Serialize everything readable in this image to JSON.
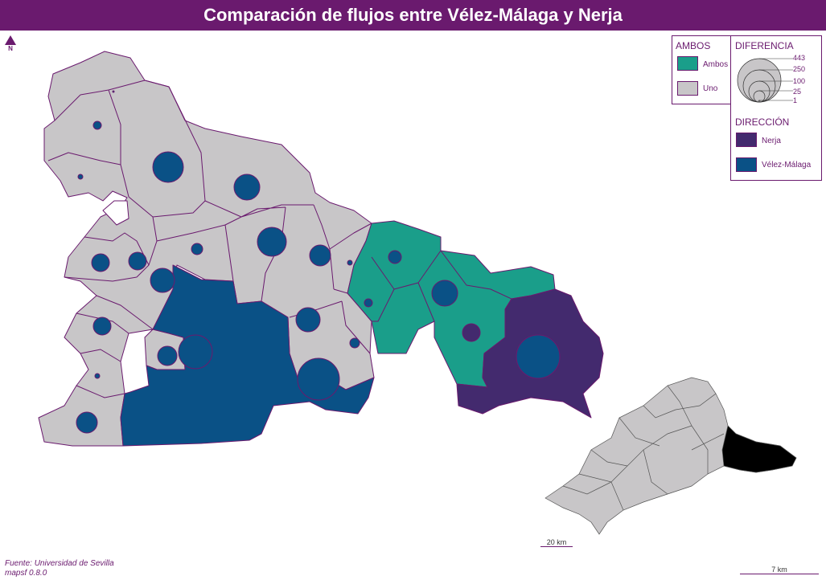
{
  "title": "Comparación de flujos entre Vélez-Málaga y Nerja",
  "north_label": "N",
  "colors": {
    "title_bg": "#6a1a6e",
    "ambos": "#1a9e8a",
    "uno": "#c8c6c8",
    "nerja": "#432a6e",
    "velez": "#0a5186",
    "border": "#6a1a6e"
  },
  "legend_ambos": {
    "title": "AMBOS",
    "items": [
      {
        "label": "Ambos",
        "color": "#1a9e8a"
      },
      {
        "label": "Uno",
        "color": "#c8c6c8"
      }
    ]
  },
  "legend_diferencia": {
    "title": "DIFERENCIA",
    "values": [
      "443",
      "250",
      "100",
      "25",
      "1"
    ]
  },
  "legend_direccion": {
    "title": "DIRECCIÓN",
    "items": [
      {
        "label": "Nerja",
        "color": "#432a6e"
      },
      {
        "label": "Vélez-Málaga",
        "color": "#0a5186"
      }
    ]
  },
  "credits": {
    "source": "Fuente: Universidad de Sevilla",
    "software": "mapsf 0.8.0"
  },
  "scale_inset": "20 km",
  "scale_main": "7 km"
}
